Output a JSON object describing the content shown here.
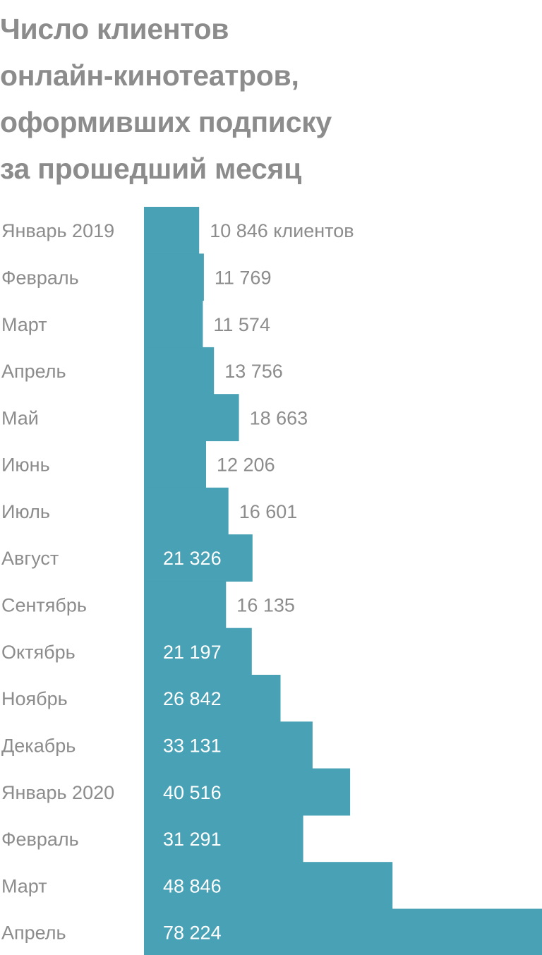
{
  "chart_data": {
    "type": "bar",
    "orientation": "horizontal",
    "title": "Число клиентов\nонлайн-кинотеатров,\nоформивших подписку\nза прошедший месяц",
    "categories": [
      "Январь 2019",
      "Февраль",
      "Март",
      "Апрель",
      "Май",
      "Июнь",
      "Июль",
      "Август",
      "Сентябрь",
      "Октябрь",
      "Ноябрь",
      "Декабрь",
      "Январь 2020",
      "Февраль",
      "Март",
      "Апрель"
    ],
    "values": [
      10846,
      11769,
      11574,
      13756,
      18663,
      12206,
      16601,
      21326,
      16135,
      21197,
      26842,
      33131,
      40516,
      31291,
      48846,
      78224
    ],
    "value_labels": [
      "10 846 клиентов",
      "11 769",
      "11 574",
      "13 756",
      "18 663",
      "12 206",
      "16 601",
      "21 326",
      "16 135",
      "21 197",
      "26 842",
      "33 131",
      "40 516",
      "31 291",
      "48 846",
      "78 224"
    ],
    "xlim": [
      0,
      78224
    ],
    "grid": false,
    "legend": "none",
    "colors": {
      "bar": "#48a1b5",
      "title": "#8c8c8c",
      "category_label": "#8c8c8c",
      "value_label_outside": "#8c8c8c",
      "value_label_inside": "#ffffff"
    }
  }
}
